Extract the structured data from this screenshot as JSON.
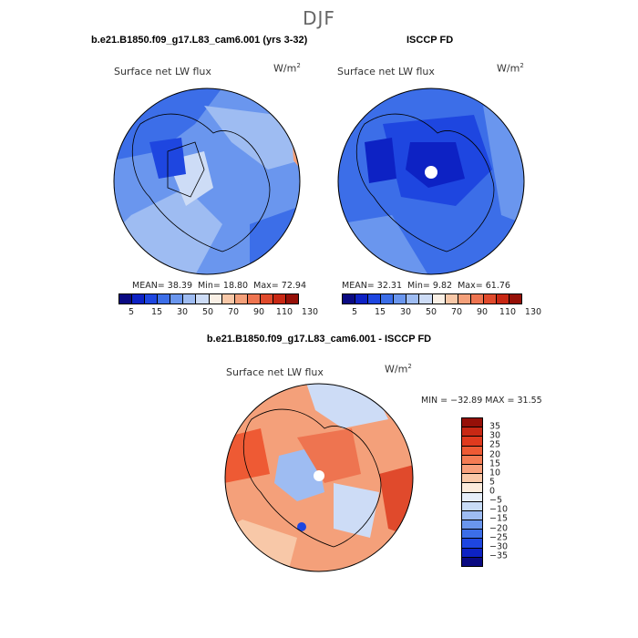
{
  "title": "DJF",
  "panels": [
    {
      "title": "b.e21.B1850.f09_g17.L83_cam6.001 (yrs 3-32)",
      "variable": "Surface net LW flux",
      "units": "W/m",
      "units_sup": "2",
      "stats": {
        "mean_label": "MEAN=",
        "mean": "38.39",
        "min_label": "Min=",
        "min": "18.80",
        "max_label": "Max=",
        "max": "72.94"
      }
    },
    {
      "title": "ISCCP FD",
      "variable": "Surface net LW flux",
      "units": "W/m",
      "units_sup": "2",
      "stats": {
        "mean_label": "MEAN=",
        "mean": "32.31",
        "min_label": "Min=",
        "min": "9.82",
        "max_label": "Max=",
        "max": "61.76"
      }
    }
  ],
  "diff_panel": {
    "title": "b.e21.B1850.f09_g17.L83_cam6.001 - ISCCP FD",
    "variable": "Surface net LW flux",
    "units": "W/m",
    "units_sup": "2",
    "min_max": "MIN = −32.89 MAX =  31.55"
  },
  "colorbar_abs": {
    "tick_labels": [
      "5",
      "15",
      "30",
      "50",
      "70",
      "90",
      "110",
      "130"
    ],
    "colors": [
      "#0a0a82",
      "#0d22c4",
      "#1e46e0",
      "#3c6ee8",
      "#6a96ee",
      "#9ebcf2",
      "#cddcf6",
      "#faf0e6",
      "#f8c8a8",
      "#f4a07a",
      "#ee7450",
      "#e04a2c",
      "#c82814",
      "#961008"
    ]
  },
  "colorbar_diff": {
    "tick_labels": [
      "35",
      "30",
      "25",
      "20",
      "15",
      "10",
      "5",
      "0",
      "−5",
      "−10",
      "−15",
      "−20",
      "−25",
      "−30",
      "−35"
    ],
    "colors": [
      "#961008",
      "#c82814",
      "#e03a1e",
      "#ee5a34",
      "#f47c54",
      "#f8a07c",
      "#fac8a8",
      "#fcebdc",
      "#e6eefa",
      "#c8dcf6",
      "#9ebcf2",
      "#6a96ee",
      "#3c6ee8",
      "#1e46e0",
      "#0d22c4",
      "#0a0a82"
    ]
  }
}
